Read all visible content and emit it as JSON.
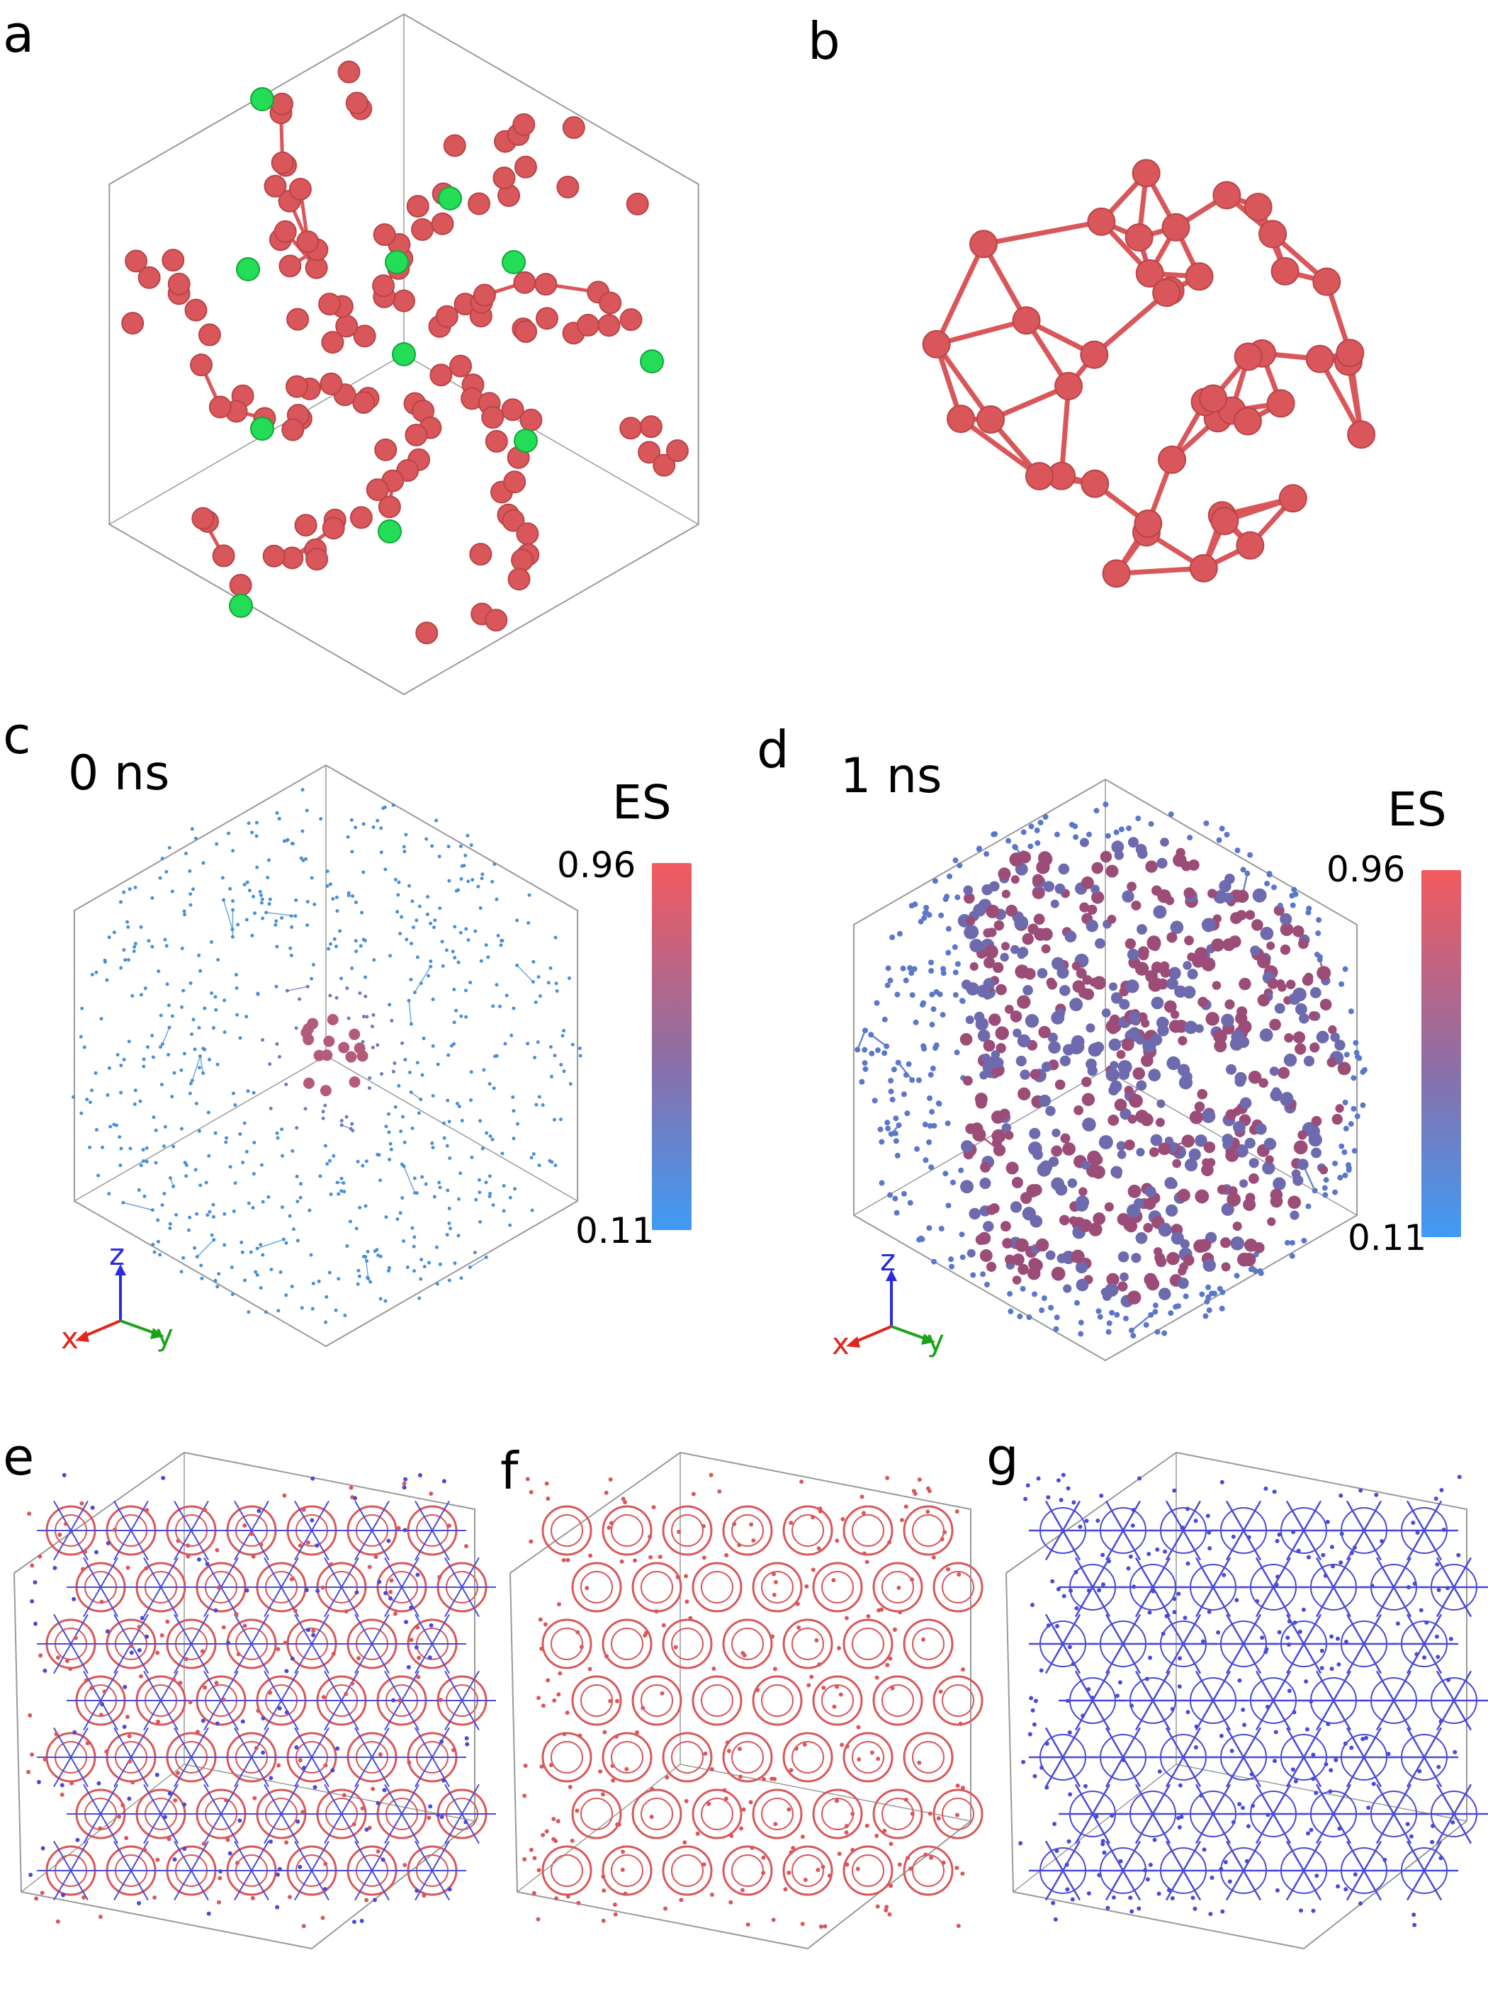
{
  "figure": {
    "panels": {
      "a": {
        "label": "a"
      },
      "b": {
        "label": "b"
      },
      "c": {
        "label": "c",
        "time": "0 ns"
      },
      "d": {
        "label": "d",
        "time": "1 ns"
      },
      "e": {
        "label": "e"
      },
      "f": {
        "label": "f"
      },
      "g": {
        "label": "g"
      }
    },
    "colorbar": {
      "title": "ES",
      "max": "0.96",
      "min": "0.11",
      "high_color": "#f25a5f",
      "mid_color": "#8a6fa8",
      "low_color": "#3f9bf5"
    },
    "axes": {
      "x": "x",
      "y": "y",
      "z": "z",
      "x_color": "#e0261b",
      "y_color": "#1aa31a",
      "z_color": "#2a2ae0"
    },
    "colors": {
      "red_atom": "#d9575a",
      "green_atom": "#22dd55",
      "blue_net": "#4a4ad6",
      "box_line": "#9a9a9a"
    }
  }
}
